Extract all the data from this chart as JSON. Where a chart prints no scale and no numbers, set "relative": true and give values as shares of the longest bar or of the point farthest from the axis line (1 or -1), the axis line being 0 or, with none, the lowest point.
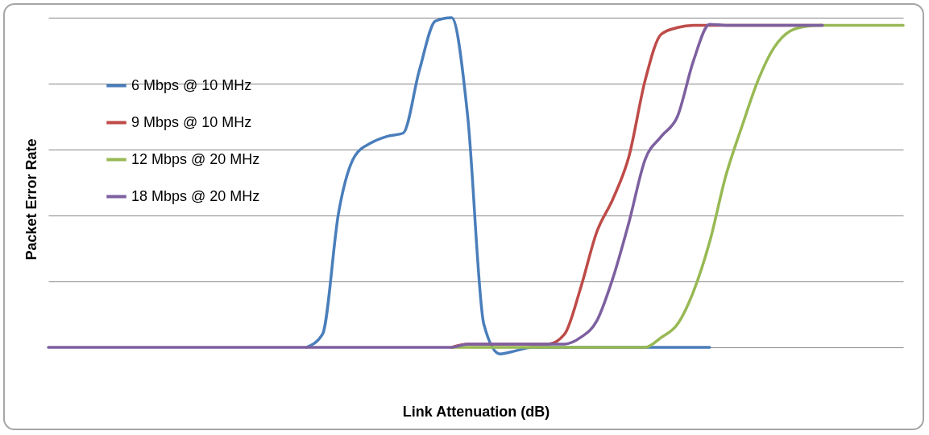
{
  "chart_data": {
    "type": "line",
    "xlabel": "Link Attenuation (dB)",
    "ylabel": "Packet Error Rate",
    "relative": true,
    "grid": "y",
    "legend": "top left",
    "marker": "none",
    "line_style": "solid",
    "categories": [
      null,
      null,
      null,
      null,
      null,
      null,
      null,
      null,
      null,
      null,
      null,
      null,
      null,
      null,
      null,
      null,
      null,
      null,
      null,
      null,
      null,
      null,
      null,
      null,
      null,
      null,
      null,
      null,
      null,
      null,
      null,
      null,
      null,
      null,
      null,
      null,
      null,
      null,
      null,
      null,
      null,
      null,
      null,
      null,
      null,
      null,
      null,
      null,
      null,
      null,
      null,
      null,
      null,
      null
    ],
    "series": [
      {
        "name": "6 Mbps @ 10 MHz",
        "color": "#4a7ebb",
        "values": [
          null,
          null,
          null,
          null,
          null,
          null,
          null,
          null,
          null,
          null,
          null,
          null,
          null,
          null,
          null,
          null,
          0,
          0.04,
          0.41,
          0.58,
          0.62,
          0.64,
          0.65,
          0.84,
          0.99,
          1.0,
          0.7,
          0.07,
          -0.02,
          -0.01,
          0,
          0,
          0,
          0,
          0,
          0,
          0,
          0,
          0,
          0,
          0,
          0,
          null,
          null,
          null,
          null,
          null,
          null,
          null,
          null,
          null,
          null,
          null,
          null
        ]
      },
      {
        "name": "9 Mbps @ 10 MHz",
        "color": "#be4b48",
        "values": [
          null,
          null,
          null,
          null,
          null,
          null,
          null,
          null,
          null,
          null,
          null,
          null,
          null,
          null,
          null,
          null,
          null,
          null,
          null,
          null,
          null,
          null,
          null,
          null,
          null,
          0,
          0.01,
          0.01,
          0.01,
          0.01,
          0.01,
          0.01,
          0.04,
          0.18,
          0.35,
          0.45,
          0.58,
          0.81,
          0.95,
          0.97,
          0.977,
          0.977,
          0.977,
          0.977,
          0.977,
          0.977,
          0.977,
          0.977,
          0.977,
          null,
          null,
          null,
          null,
          null
        ]
      },
      {
        "name": "12 Mbps @ 20 MHz",
        "color": "#98b954",
        "values": [
          null,
          null,
          null,
          null,
          null,
          null,
          null,
          null,
          null,
          null,
          null,
          null,
          null,
          null,
          null,
          null,
          null,
          null,
          null,
          null,
          null,
          null,
          null,
          null,
          null,
          0,
          0,
          0,
          0,
          0,
          0,
          0,
          0,
          0,
          0,
          0,
          0,
          0,
          0.03,
          0.07,
          0.17,
          0.32,
          0.52,
          0.67,
          0.81,
          0.91,
          0.96,
          0.974,
          0.977,
          0.977,
          0.977,
          0.977,
          0.977,
          0.977
        ]
      },
      {
        "name": "18 Mbps @ 20 MHz",
        "color": "#7d60a0",
        "values": [
          0,
          0,
          0,
          0,
          0,
          0,
          0,
          0,
          0,
          0,
          0,
          0,
          0,
          0,
          0,
          0,
          0,
          0,
          0,
          0,
          0,
          0,
          0,
          0,
          0,
          0,
          0.01,
          0.01,
          0.01,
          0.01,
          0.01,
          0.01,
          0.01,
          0.03,
          0.08,
          0.21,
          0.38,
          0.57,
          0.64,
          0.7,
          0.87,
          0.98,
          0.977,
          0.977,
          0.977,
          0.977,
          0.977,
          0.977,
          0.977,
          null,
          null,
          null,
          null,
          null
        ]
      }
    ]
  }
}
